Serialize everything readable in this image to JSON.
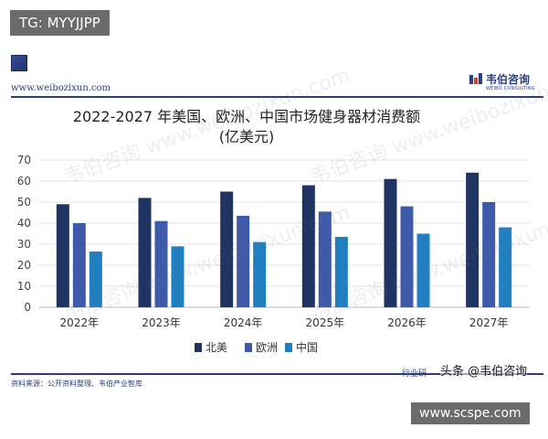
{
  "overlay": {
    "tag": "TG: MYYJJPP",
    "site": "www.scspe.com"
  },
  "header": {
    "url": "www.weibozixun.com",
    "logo_cn": "韦伯咨询",
    "logo_en": "WEIBO CONSULTING"
  },
  "footer": {
    "source": "资料来源：公开资料整理、韦伯产业智库",
    "right_note": "行业研",
    "toutiao": "头条 @韦伯咨询"
  },
  "watermark": "韦伯咨询 www.weibozixun.com",
  "colors": {
    "north_america": "#1f3462",
    "europe": "#3f5aa8",
    "china": "#1f7fc0",
    "frame": "#2d3d7c"
  },
  "chart_data": {
    "type": "bar",
    "title": "2022-2027 年美国、欧洲、中国市场健身器材消费额",
    "subtitle": "(亿美元)",
    "categories": [
      "2022年",
      "2023年",
      "2024年",
      "2025年",
      "2026年",
      "2027年"
    ],
    "series": [
      {
        "name": "北美",
        "values": [
          49,
          52,
          55,
          58,
          61,
          64
        ]
      },
      {
        "name": "欧洲",
        "values": [
          40,
          41,
          43.5,
          45.5,
          48,
          50
        ]
      },
      {
        "name": "中国",
        "values": [
          26.5,
          29,
          31,
          33.5,
          35,
          38
        ]
      }
    ],
    "ylim": [
      0,
      70
    ],
    "yticks": [
      0,
      10,
      20,
      30,
      40,
      50,
      60,
      70
    ],
    "grid": true,
    "legend_position": "bottom"
  }
}
